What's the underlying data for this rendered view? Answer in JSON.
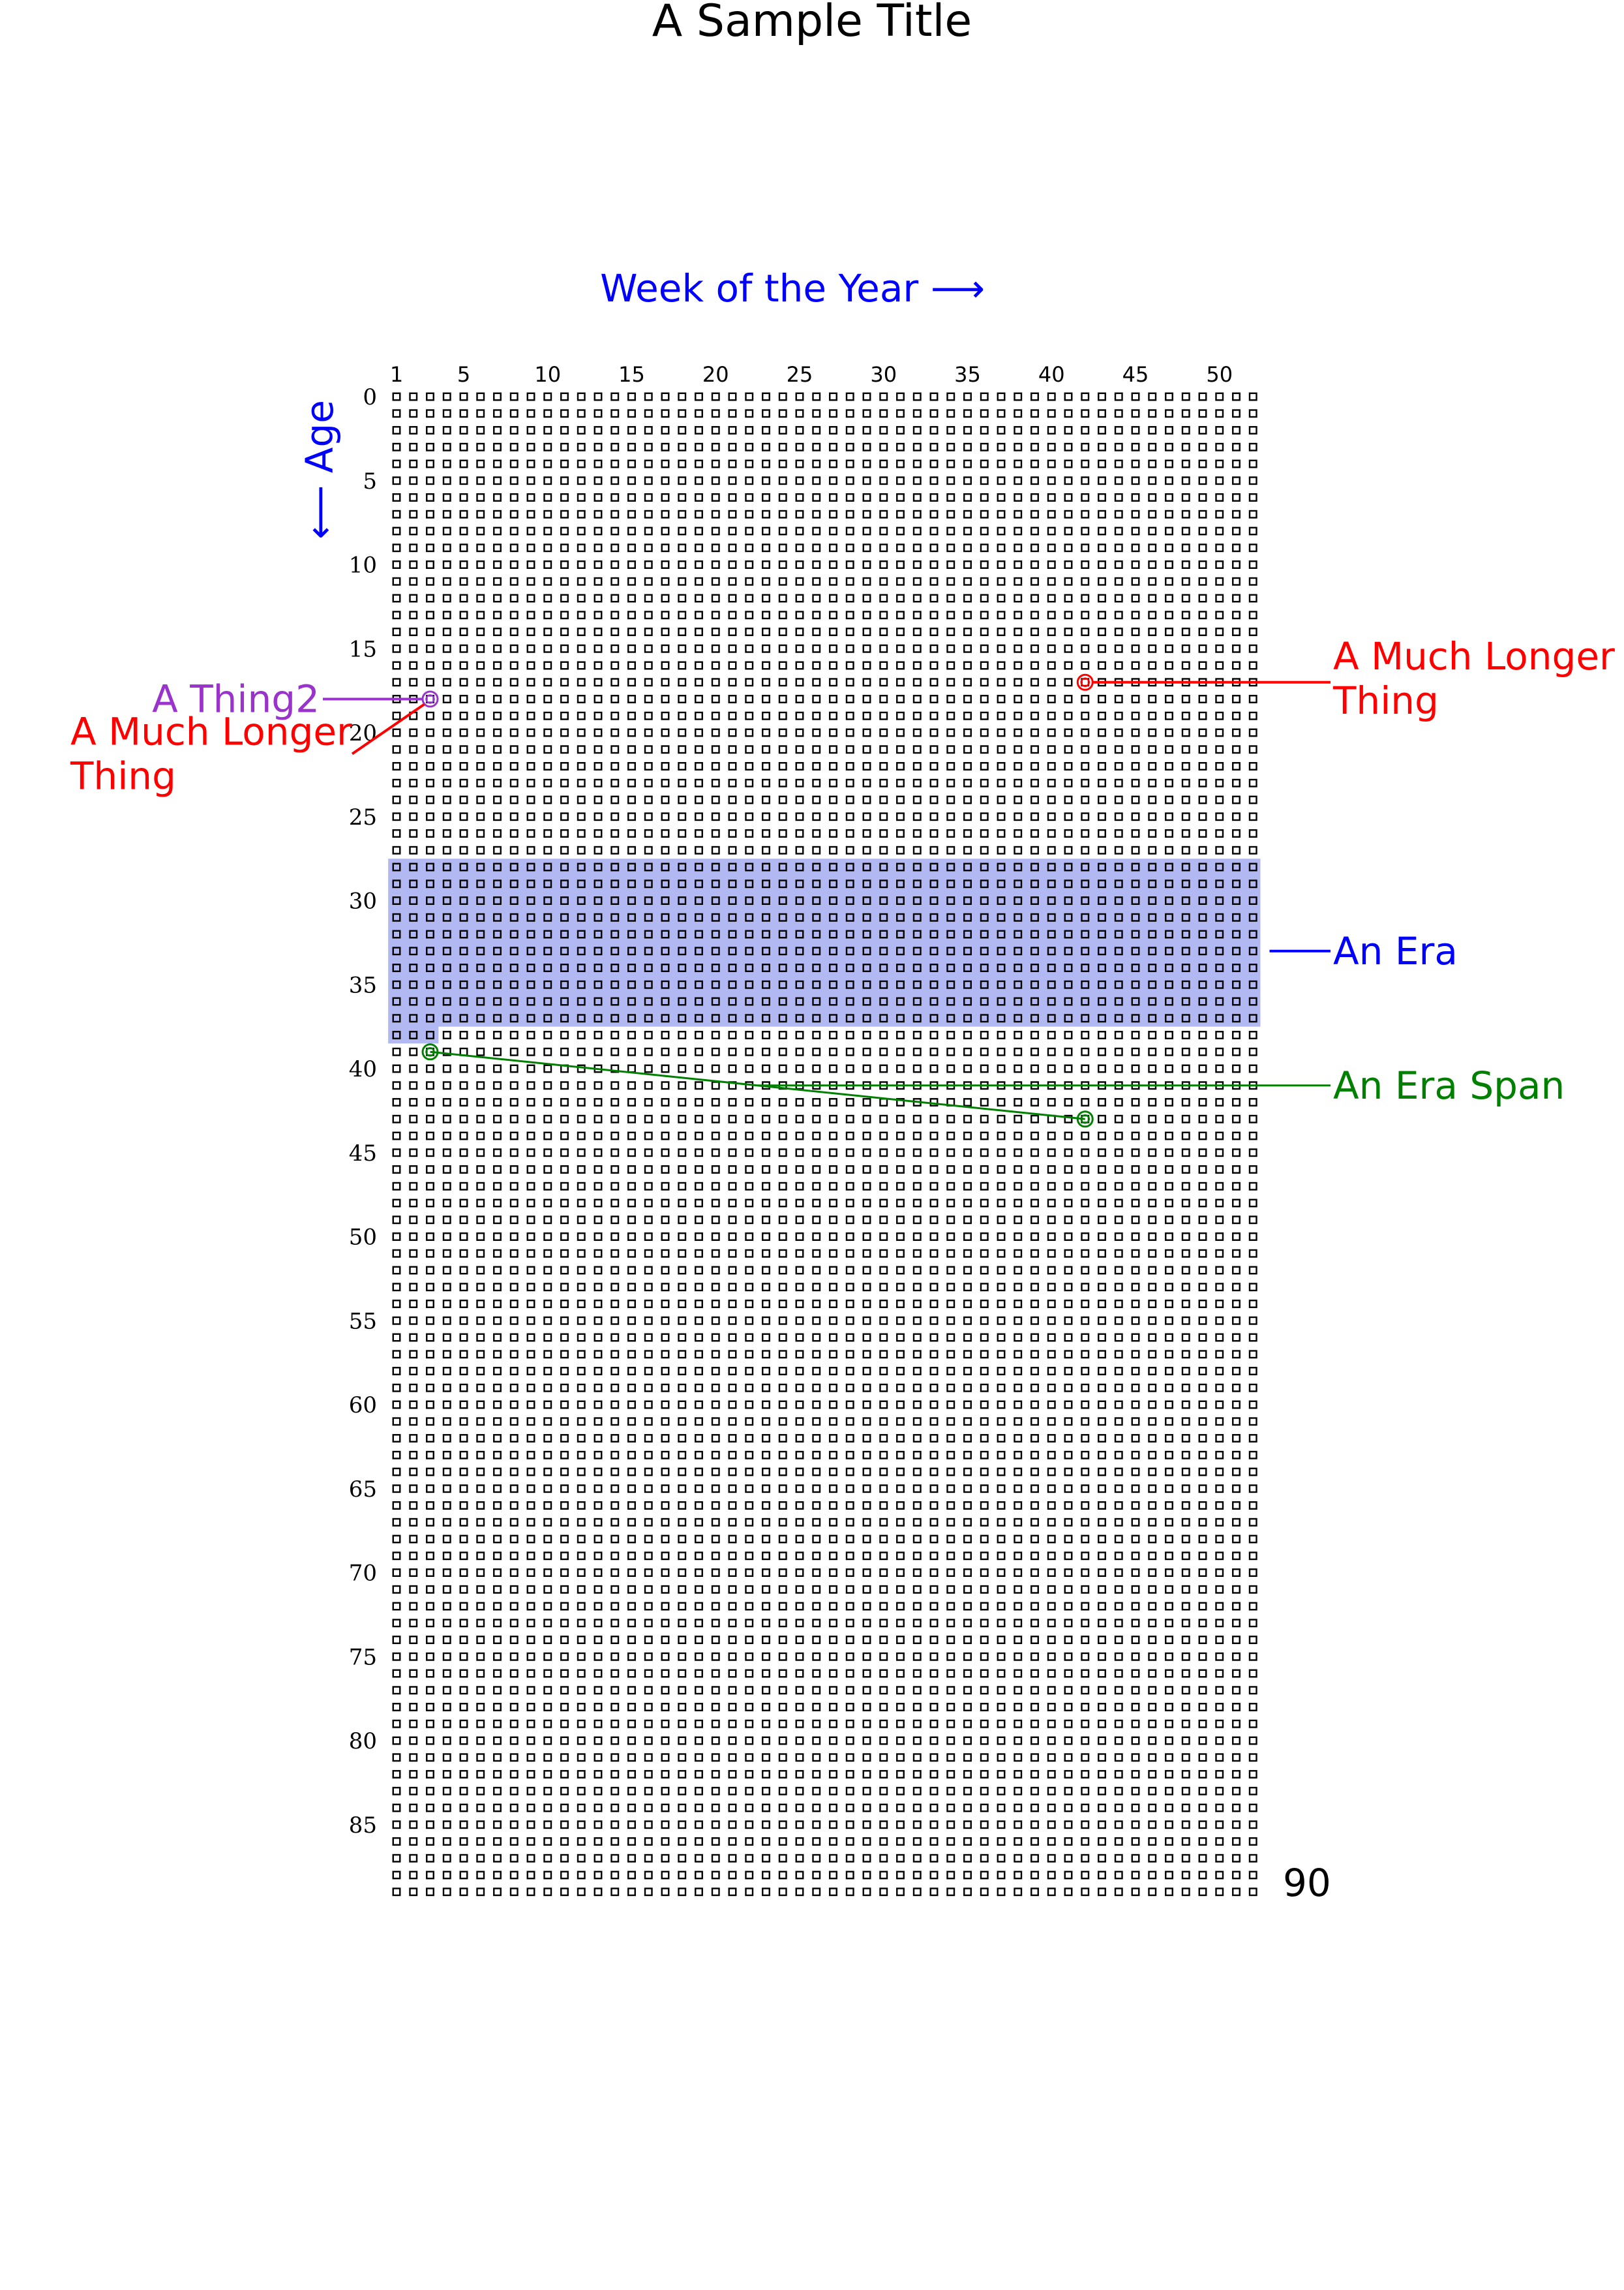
{
  "chart_data": {
    "type": "heatmap",
    "title": "A Sample Title",
    "xlabel": "Week of the Year",
    "ylabel": "Age",
    "x_axis_arrow": "⟶",
    "y_axis_arrow": "⟵",
    "x_range": [
      1,
      52
    ],
    "y_range": [
      0,
      89
    ],
    "x_ticks": [
      1,
      5,
      10,
      15,
      20,
      25,
      30,
      35,
      40,
      45,
      50
    ],
    "y_ticks": [
      0,
      5,
      10,
      15,
      20,
      25,
      30,
      35,
      40,
      45,
      50,
      55,
      60,
      65,
      70,
      75,
      80,
      85
    ],
    "end_label": "90",
    "grid": true,
    "eras": [
      {
        "label": "An Era",
        "color": "#0000ff",
        "fill": "#aab0f0",
        "start": {
          "week": 1,
          "age": 28
        },
        "end": {
          "week": 3,
          "age": 38
        }
      }
    ],
    "era_spans": [
      {
        "label": "An Era Span",
        "color": "#008000",
        "start": {
          "week": 3,
          "age": 39
        },
        "end": {
          "week": 42,
          "age": 43
        }
      }
    ],
    "events": [
      {
        "label": "A Thing2",
        "color": "#9933cc",
        "week": 3,
        "age": 18,
        "side": "left"
      },
      {
        "label": "A Much Longer Thing",
        "color": "#ff0000",
        "week": 3,
        "age": 18,
        "side": "left"
      },
      {
        "label": "A Much Longer Thing",
        "color": "#ff0000",
        "week": 42,
        "age": 17,
        "side": "right"
      }
    ]
  }
}
